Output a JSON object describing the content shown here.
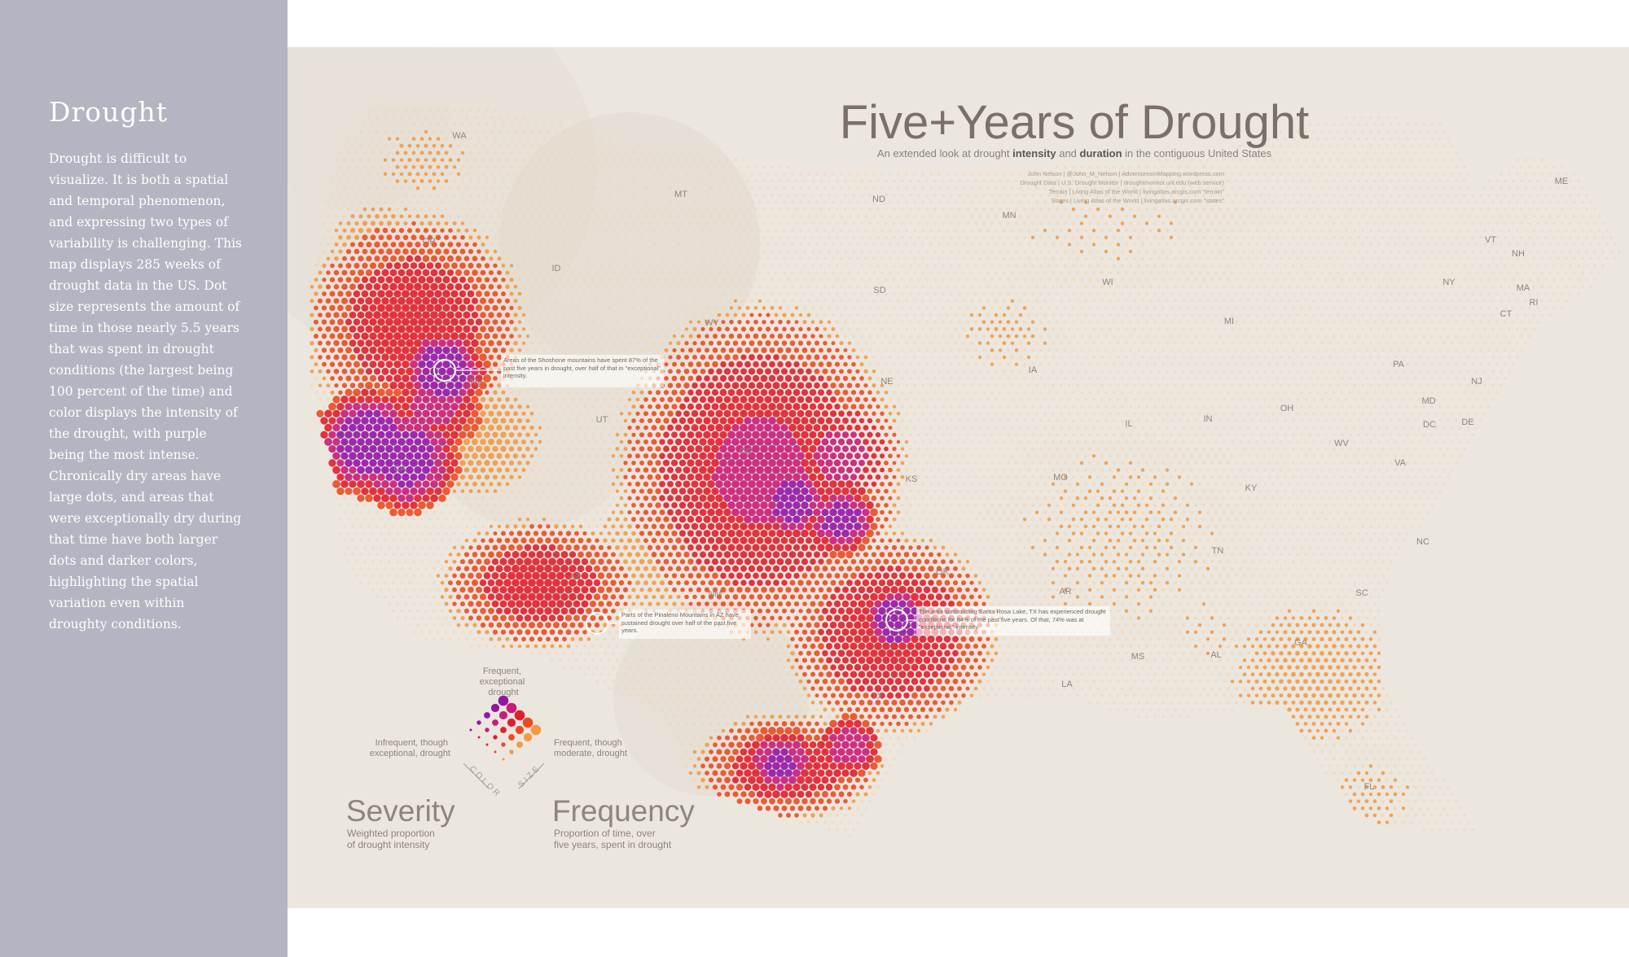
{
  "sidebar": {
    "title": "Drought",
    "body": "Drought is difficult to visualize. It is both a spatial and temporal phenomenon, and expressing two types of variability is challenging. This map displays 285 weeks of drought data in the US. Dot size represents the amount of time in those nearly 5.5 years that was spent in drought conditions (the largest being 100 percent of the time) and color displays the intensity of the drought, with purple being the most intense. Chronically dry areas have large dots, and areas that were exceptionally dry during that time have both larger dots and darker colors, highlighting the spatial variation even within droughty conditions."
  },
  "map": {
    "title": "Five+Years of Drought",
    "subtitle_before": "An extended look at drought ",
    "subtitle_intensity": "intensity",
    "subtitle_and": " and ",
    "subtitle_duration": "duration",
    "subtitle_after": " in the contiguous United States",
    "credits": [
      "John Nelson  |  @John_M_Nelson  |  AdventuresInMapping.wordpress.com",
      "Drought Data  |  U.S. Drought Monitor  |  droughtmonitor.unl.edu (web service)",
      "Terrain  |  Living Atlas of the World  |  livingatlas.arcgis.com  \"terrain\"",
      "States  |  Living Atlas of the World  |  livingatlas.arcgis.com  \"states\""
    ],
    "states": [
      "WA",
      "MT",
      "ND",
      "MN",
      "ME",
      "OR",
      "ID",
      "SD",
      "WI",
      "VT",
      "NH",
      "NY",
      "MA",
      "RI",
      "CT",
      "WY",
      "MI",
      "NV",
      "IA",
      "NE",
      "PA",
      "NJ",
      "MD",
      "DE",
      "UT",
      "IL",
      "IN",
      "OH",
      "DC",
      "CO",
      "WV",
      "VA",
      "KS",
      "MO",
      "KY",
      "CA",
      "NC",
      "TN",
      "OK",
      "AZ",
      "NM",
      "AR",
      "SC",
      "MS",
      "AL",
      "GA",
      "LA",
      "TX",
      "FL"
    ],
    "callouts": {
      "nevada": "Areas of the Shoshone mountains have spent 87% of the past five years in drought, over half of that in \"exceptional\" intensity.",
      "arizona": "Parts of the Pinaleno Mountains in AZ have sustained drought over half of the past five years.",
      "texas": "The area surrounding Santa Rosa Lake, TX has experienced drought conditions for 84% of the past five years. Of that, 74% was at \"exceptional\" intensity."
    },
    "legend": {
      "top_label": [
        "Frequent,",
        "exceptional",
        "drought"
      ],
      "left_label": [
        "Infrequent, though",
        "exceptional, drought"
      ],
      "right_label": [
        "Frequent, though",
        "moderate, drought"
      ],
      "axis_left": "COLOR",
      "axis_right": "SIZE",
      "severity_title": "Severity",
      "severity_desc": [
        "Weighted proportion",
        "of drought intensity"
      ],
      "frequency_title": "Frequency",
      "frequency_desc": [
        "Proportion of time, over",
        "five years, spent in drought"
      ]
    },
    "colors": {
      "background": "#ebe6de",
      "light": "#f7d2a6",
      "orange": "#f29a45",
      "red_orange": "#eb4b22",
      "red": "#e01f2d",
      "magenta": "#c81c78",
      "purple": "#9514a6",
      "title_text": "#7a7067"
    }
  }
}
